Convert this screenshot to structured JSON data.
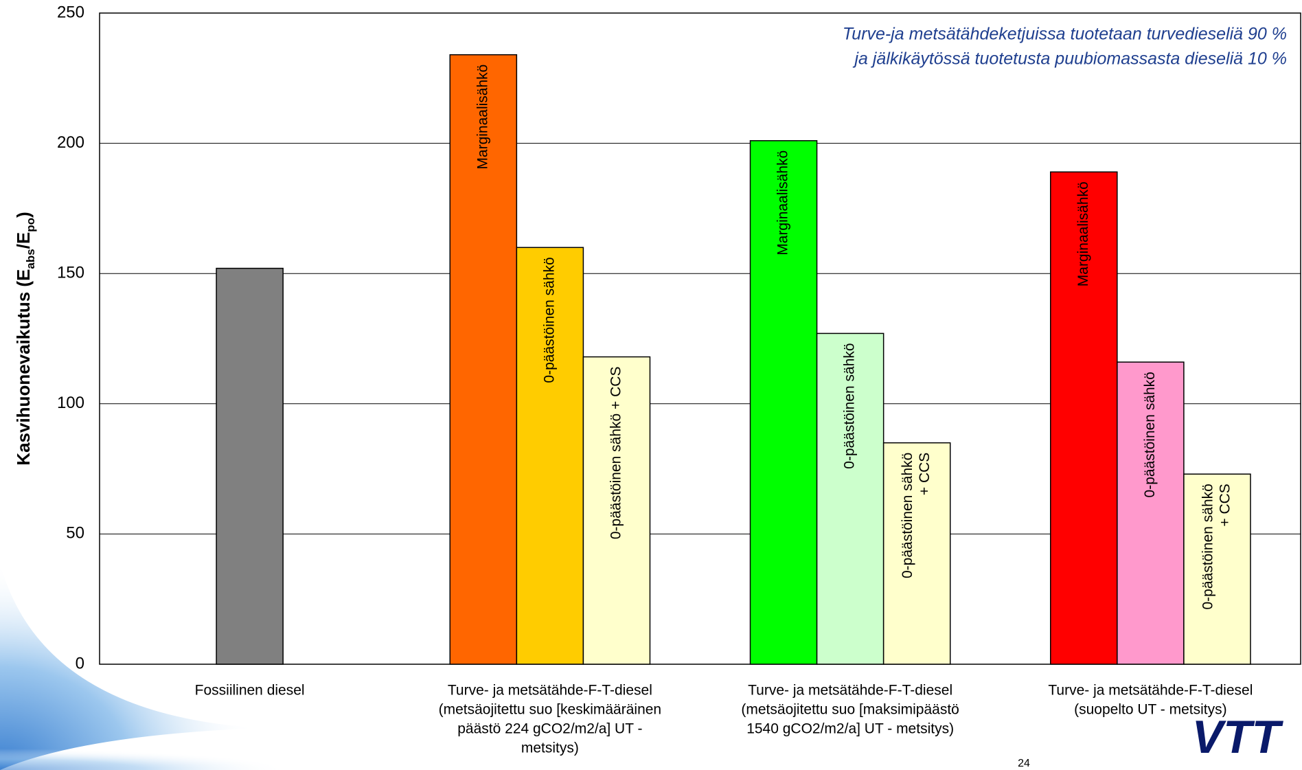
{
  "chart_data": {
    "type": "grouped-bar",
    "annotation": [
      "Turve-ja metsätähdeketjuissa tuotetaan turvedieseliä 90 %",
      "ja jälkikäytössä tuotetusta puubiomassasta dieseliä 10 %"
    ],
    "ylabel": [
      "Kasvihuonevaikutus (E",
      "abs",
      "/E",
      "po",
      ")"
    ],
    "ylim": [
      0,
      250
    ],
    "yticks": [
      0,
      50,
      100,
      150,
      200,
      250
    ],
    "grid": true,
    "groups": [
      {
        "category": [
          "Fossiilinen diesel"
        ],
        "bars": [
          {
            "label": [],
            "value": 152,
            "color": "#808080"
          }
        ]
      },
      {
        "category": [
          "Turve- ja metsätähde-F-T-diesel",
          "(metsäojitettu suo [keskimääräinen",
          "päästö 224 gCO2/m2/a] UT -",
          "metsitys)"
        ],
        "bars": [
          {
            "label": [
              "Marginaalisähkö"
            ],
            "value": 234,
            "color": "#ff6600"
          },
          {
            "label": [
              "0-päästöinen sähkö"
            ],
            "value": 160,
            "color": "#ffcc00"
          },
          {
            "label": [
              "0-päästöinen sähkö + CCS"
            ],
            "value": 118,
            "color": "#ffffcc"
          }
        ]
      },
      {
        "category": [
          "Turve- ja metsätähde-F-T-diesel",
          "(metsäojitettu suo [maksimipäästö",
          "1540 gCO2/m2/a] UT - metsitys)"
        ],
        "bars": [
          {
            "label": [
              "Marginaalisähkö"
            ],
            "value": 201,
            "color": "#00ff00"
          },
          {
            "label": [
              "0-päästöinen sähkö"
            ],
            "value": 127,
            "color": "#ccffcc"
          },
          {
            "label": [
              "0-päästöinen sähkö",
              "+ CCS"
            ],
            "value": 85,
            "color": "#ffffcc"
          }
        ]
      },
      {
        "category": [
          "Turve- ja metsätähde-F-T-diesel",
          "(suopelto UT - metsitys)"
        ],
        "bars": [
          {
            "label": [
              "Marginaalisähkö"
            ],
            "value": 189,
            "color": "#ff0000"
          },
          {
            "label": [
              "0-päästöinen sähkö"
            ],
            "value": 116,
            "color": "#ff99cc"
          },
          {
            "label": [
              "0-päästöinen sähkö",
              "+ CCS"
            ],
            "value": 73,
            "color": "#ffffcc"
          }
        ]
      }
    ]
  },
  "page_number": "24",
  "logo": "VTT"
}
